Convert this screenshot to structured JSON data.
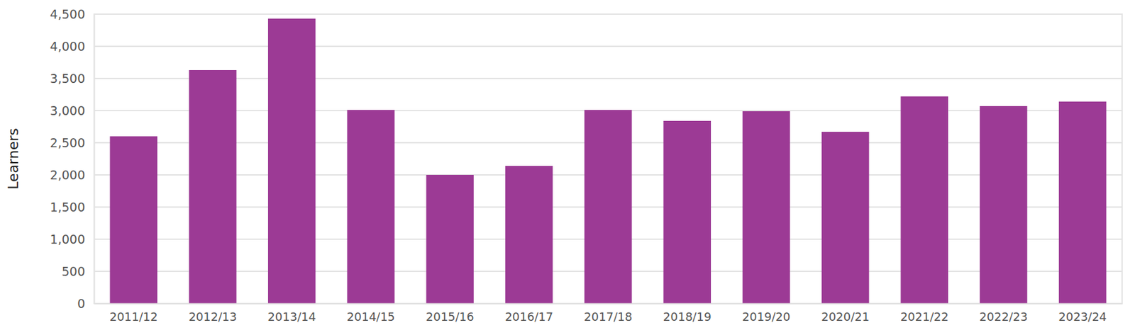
{
  "chart_data": {
    "type": "bar",
    "y_label": "Learners",
    "categories": [
      "2011/12",
      "2012/13",
      "2013/14",
      "2014/15",
      "2015/16",
      "2016/17",
      "2017/18",
      "2018/19",
      "2019/20",
      "2020/21",
      "2021/22",
      "2022/23",
      "2023/24"
    ],
    "values": [
      2600,
      3630,
      4430,
      3010,
      2000,
      2140,
      3010,
      2840,
      2990,
      2670,
      3220,
      3070,
      3140
    ],
    "color": "#9c3a95",
    "ylim": [
      0,
      4500
    ],
    "yticks": [
      0,
      500,
      {
        "value": 1000,
        "label": "1,000"
      },
      {
        "value": 1500,
        "label": "1,500"
      },
      {
        "value": 2000,
        "label": "2,000"
      },
      {
        "value": 2500,
        "label": "2,500"
      },
      {
        "value": 3000,
        "label": "3,000"
      },
      {
        "value": 3500,
        "label": "3,500"
      },
      {
        "value": 4000,
        "label": "4,000"
      },
      {
        "value": 4500,
        "label": "4,500"
      }
    ],
    "grid": true
  }
}
